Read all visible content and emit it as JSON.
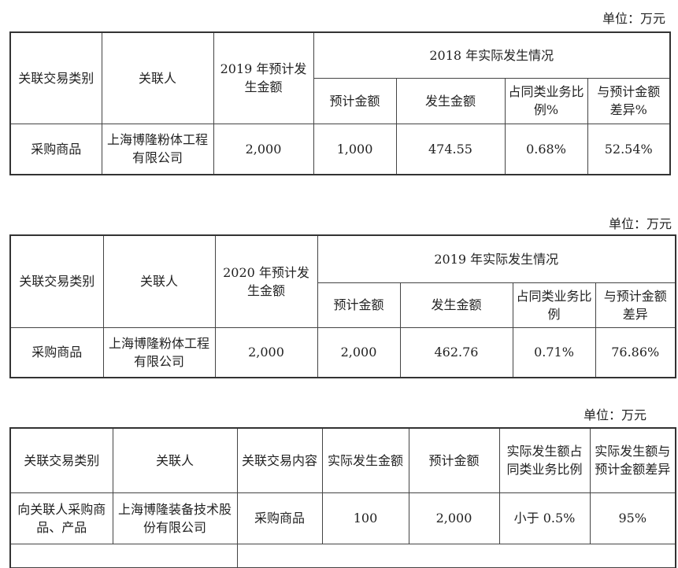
{
  "table1": {
    "unit": "单位：万元",
    "headers": {
      "type": "关联交易类别",
      "party": "关联人",
      "forecast": "2019 年预计发生金额",
      "actual_group": "2018 年实际发生情况",
      "est": "预计金额",
      "amount": "发生金额",
      "ratio": "占同类业务比例%",
      "diff": "与预计金额差异%"
    },
    "row": {
      "type": "采购商品",
      "party": "上海博隆粉体工程有限公司",
      "forecast": "2,000",
      "est": "1,000",
      "amount": "474.55",
      "ratio": "0.68%",
      "diff": "52.54%"
    }
  },
  "table2": {
    "unit": "单位：万元",
    "headers": {
      "type": "关联交易类别",
      "party": "关联人",
      "forecast": "2020 年预计发生金额",
      "actual_group": "2019 年实际发生情况",
      "est": "预计金额",
      "amount": "发生金额",
      "ratio": "占同类业务比例",
      "diff": "与预计金额差异"
    },
    "row": {
      "type": "采购商品",
      "party": "上海博隆粉体工程有限公司",
      "forecast": "2,000",
      "est": "2,000",
      "amount": "462.76",
      "ratio": "0.71%",
      "diff": "76.86%"
    }
  },
  "table3": {
    "unit": "单位：万元",
    "headers": {
      "type": "关联交易类别",
      "party": "关联人",
      "content": "关联交易内容",
      "actual": "实际发生金额",
      "est": "预计金额",
      "ratio": "实际发生额占同类业务比例",
      "diff": "实际发生额与预计金额差异"
    },
    "row": {
      "type": "向关联人采购商品、产品",
      "party": "上海博隆装备技术股份有限公司",
      "content": "采购商品",
      "actual": "100",
      "est": "2,000",
      "ratio": "小于 0.5%",
      "diff": "95%"
    }
  }
}
